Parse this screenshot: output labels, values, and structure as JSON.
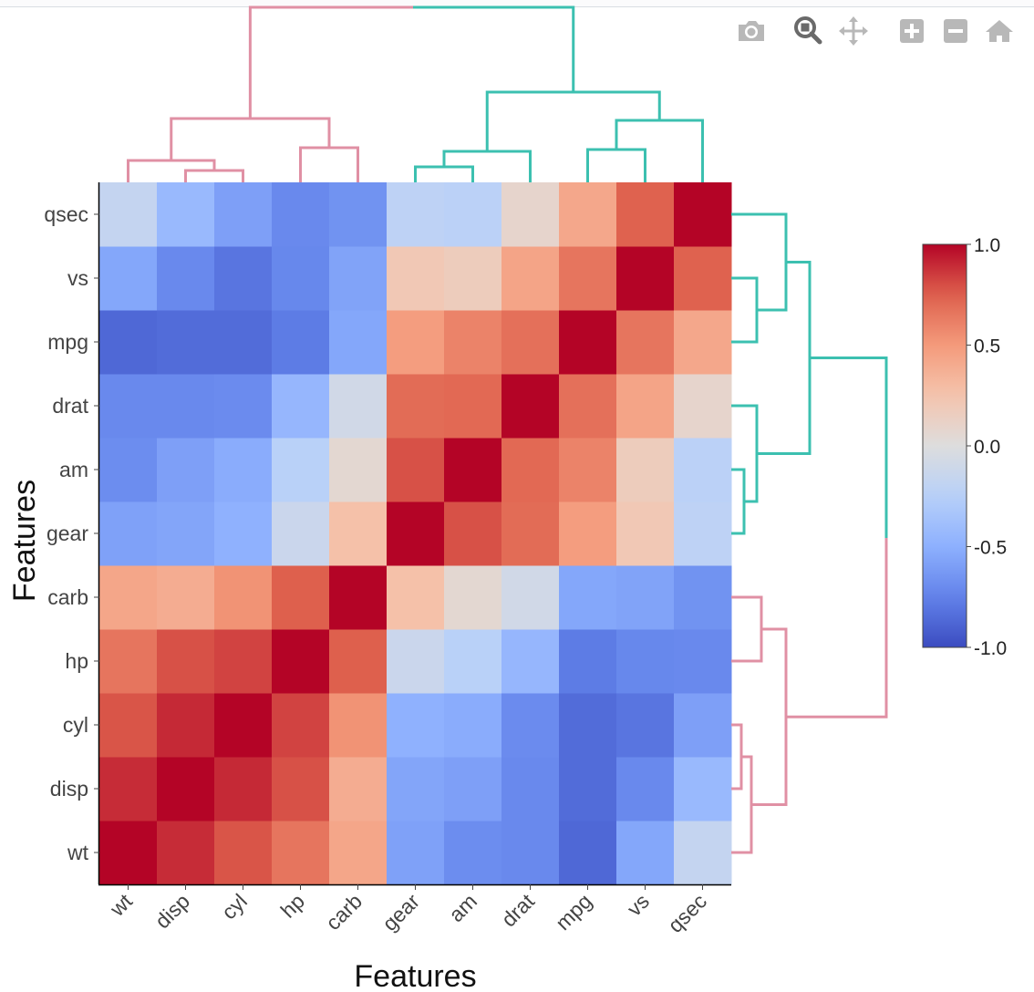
{
  "chart_data": {
    "type": "heatmap",
    "title": "",
    "xlabel": "Features",
    "ylabel": "Features",
    "x_categories": [
      "wt",
      "disp",
      "cyl",
      "hp",
      "carb",
      "gear",
      "am",
      "drat",
      "mpg",
      "vs",
      "qsec"
    ],
    "y_categories": [
      "wt",
      "disp",
      "cyl",
      "hp",
      "carb",
      "gear",
      "am",
      "drat",
      "mpg",
      "vs",
      "qsec"
    ],
    "z": [
      [
        1.0,
        0.89,
        0.78,
        0.66,
        0.43,
        -0.58,
        -0.69,
        -0.71,
        -0.87,
        -0.55,
        -0.17
      ],
      [
        0.89,
        1.0,
        0.9,
        0.79,
        0.39,
        -0.56,
        -0.59,
        -0.71,
        -0.85,
        -0.71,
        -0.43
      ],
      [
        0.78,
        0.9,
        1.0,
        0.83,
        0.53,
        -0.49,
        -0.52,
        -0.7,
        -0.85,
        -0.81,
        -0.59
      ],
      [
        0.66,
        0.79,
        0.83,
        1.0,
        0.75,
        -0.13,
        -0.24,
        -0.45,
        -0.78,
        -0.72,
        -0.71
      ],
      [
        0.43,
        0.39,
        0.53,
        0.75,
        1.0,
        0.27,
        0.06,
        -0.09,
        -0.55,
        -0.57,
        -0.66
      ],
      [
        -0.58,
        -0.56,
        -0.49,
        -0.13,
        0.27,
        1.0,
        0.79,
        0.7,
        0.48,
        0.21,
        -0.21
      ],
      [
        -0.69,
        -0.59,
        -0.52,
        -0.24,
        0.06,
        0.79,
        1.0,
        0.71,
        0.6,
        0.17,
        -0.23
      ],
      [
        -0.71,
        -0.71,
        -0.7,
        -0.45,
        -0.09,
        0.7,
        0.71,
        1.0,
        0.68,
        0.44,
        0.09
      ],
      [
        -0.87,
        -0.85,
        -0.85,
        -0.78,
        -0.55,
        0.48,
        0.6,
        0.68,
        1.0,
        0.66,
        0.42
      ],
      [
        -0.55,
        -0.71,
        -0.81,
        -0.72,
        -0.57,
        0.21,
        0.17,
        0.44,
        0.66,
        1.0,
        0.74
      ],
      [
        -0.17,
        -0.43,
        -0.59,
        -0.71,
        -0.66,
        -0.21,
        -0.23,
        0.09,
        0.42,
        0.74,
        1.0
      ]
    ],
    "zlim": [
      -1.0,
      1.0
    ],
    "colorscale": "coolwarm",
    "colorbar": {
      "ticks": [
        1.0,
        0.5,
        0.0,
        -0.5,
        -1.0
      ],
      "tick_labels": [
        "1.0",
        "0.5",
        "0.0",
        "-0.5",
        "-1.0"
      ]
    },
    "dendrogram_colors": {
      "cluster_a": "#e090a4",
      "cluster_b": "#3cc0b0"
    },
    "clusters": {
      "cluster_a": [
        "wt",
        "disp",
        "cyl",
        "hp",
        "carb"
      ],
      "cluster_b": [
        "gear",
        "am",
        "drat",
        "mpg",
        "vs",
        "qsec"
      ]
    }
  },
  "modebar": {
    "buttons": [
      "camera-icon",
      "zoom-icon",
      "pan-icon",
      "zoom-in-icon",
      "zoom-out-icon",
      "reset-axes-icon"
    ]
  }
}
